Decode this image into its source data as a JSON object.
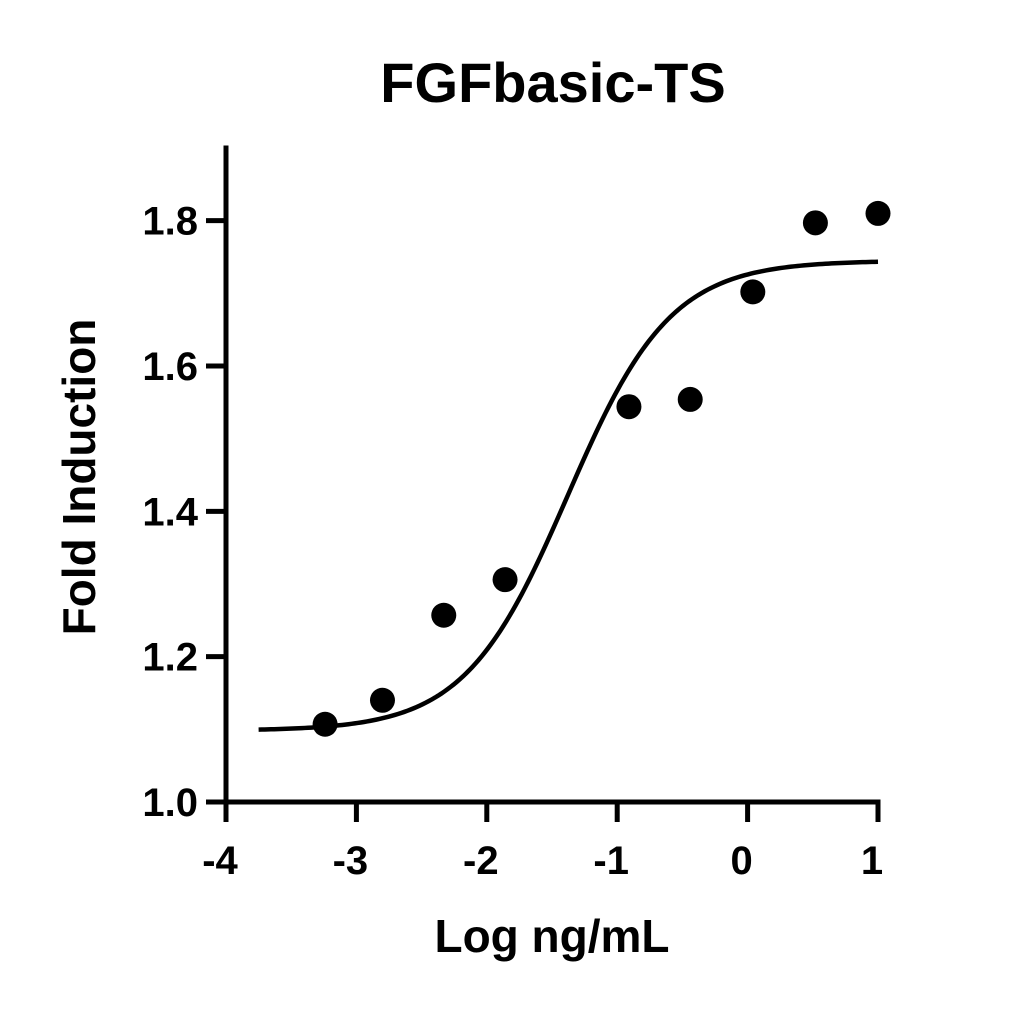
{
  "chart_data": {
    "type": "scatter",
    "title": "FGFbasic-TS",
    "xlabel": "Log ng/mL",
    "ylabel": "Fold Induction",
    "xlim": [
      -4,
      1
    ],
    "ylim": [
      1.0,
      1.9
    ],
    "xticks": [
      -4,
      -3,
      -2,
      -1,
      0,
      1
    ],
    "xtick_labels": [
      "-4",
      "-3",
      "-2",
      "-1",
      "0",
      "1"
    ],
    "yticks": [
      1.0,
      1.2,
      1.4,
      1.6,
      1.8
    ],
    "ytick_labels": [
      "1.0",
      "1.2",
      "1.4",
      "1.6",
      "1.8"
    ],
    "grid": false,
    "series": [
      {
        "type": "scatter",
        "x": [
          -3.24,
          -2.8,
          -2.33,
          -1.86,
          -0.91,
          -0.44,
          0.04,
          0.52,
          1.0
        ],
        "y": [
          1.107,
          1.14,
          1.257,
          1.306,
          1.544,
          1.554,
          1.702,
          1.797,
          1.81
        ]
      }
    ],
    "fit_curve": {
      "type": "four-parameter logistic",
      "bottom": 1.098,
      "top": 1.745,
      "log_ec50": -1.38,
      "hill_slope": 1.1,
      "x_range": [
        -3.75,
        1.0
      ]
    }
  }
}
